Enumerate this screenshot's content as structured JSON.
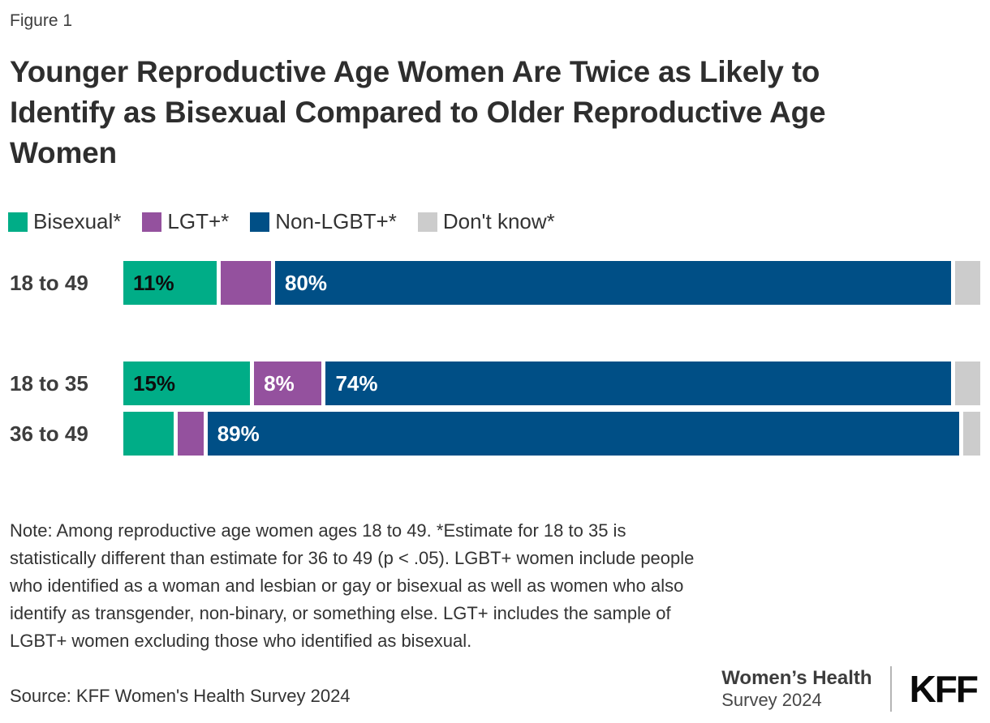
{
  "figure_label": "Figure 1",
  "title": "Younger Reproductive Age Women Are Twice as Likely to Identify as Bisexual Compared to Older Reproductive Age Women",
  "chart_data": {
    "type": "bar",
    "orientation": "horizontal",
    "stacked": true,
    "unit": "percent",
    "axis_range": [
      0,
      100
    ],
    "grid": false,
    "legend_position": "top",
    "categories": [
      "18 to 49",
      "18 to 35",
      "36 to 49"
    ],
    "row_groups": [
      [
        0
      ],
      [
        1,
        2
      ]
    ],
    "series": [
      {
        "name": "Bisexual*",
        "color": "#00ad87",
        "label_color": "#0d0d0d",
        "values": [
          11,
          15,
          6
        ],
        "data_labels": [
          "11%",
          "15%",
          ""
        ]
      },
      {
        "name": "LGT+*",
        "color": "#94519e",
        "label_color": "#ffffff",
        "values": [
          6,
          8,
          3
        ],
        "data_labels": [
          "",
          "8%",
          ""
        ]
      },
      {
        "name": "Non-LGBT+*",
        "color": "#004f86",
        "label_color": "#ffffff",
        "values": [
          80,
          74,
          89
        ],
        "data_labels": [
          "80%",
          "74%",
          "89%"
        ]
      },
      {
        "name": "Don't know*",
        "color": "#cccccc",
        "label_color": "#333333",
        "values": [
          3,
          3,
          2
        ],
        "data_labels": [
          "",
          "",
          ""
        ]
      }
    ]
  },
  "note": "Note: Among reproductive age women ages 18 to 49. *Estimate for 18 to 35 is statistically different than estimate for 36 to 49 (p < .05). LGBT+ women include people who identified as a woman and lesbian or gay or bisexual as well as women who also identify as transgender, non-binary, or something else. LGT+ includes the sample of LGBT+ women excluding those who identified as bisexual.",
  "source": "Source: KFF Women's Health Survey 2024",
  "footer": {
    "program_line1": "Women’s Health",
    "program_line2": "Survey 2024",
    "logo": "KFF"
  }
}
